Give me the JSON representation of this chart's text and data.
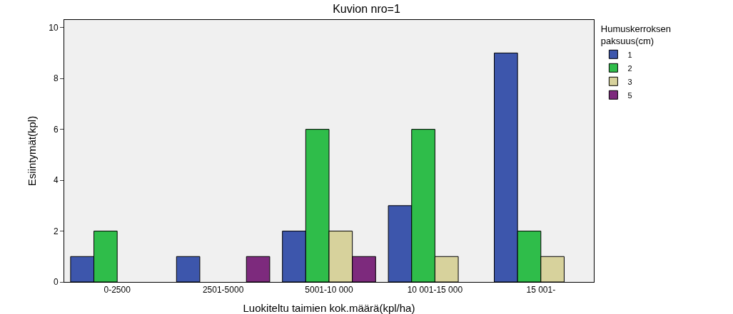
{
  "chart_data": {
    "type": "bar",
    "title": "Kuvion nro=1",
    "xlabel": "Luokiteltu taimien kok.määrä(kpl/ha)",
    "ylabel": "Esiintymät(kpl)",
    "legend_title": "Humuskerroksen paksuus(cm)",
    "categories": [
      "0-2500",
      "2501-5000",
      "5001-10 000",
      "10 001-15 000",
      "15 001-"
    ],
    "series": [
      {
        "name": "1",
        "color": "#3d56ac",
        "values": [
          1,
          1,
          2,
          3,
          9
        ]
      },
      {
        "name": "2",
        "color": "#2fbd4a",
        "values": [
          2,
          null,
          6,
          6,
          2
        ]
      },
      {
        "name": "3",
        "color": "#d7d29c",
        "values": [
          null,
          null,
          2,
          1,
          1
        ]
      },
      {
        "name": "5",
        "color": "#7d2a7d",
        "values": [
          null,
          1,
          1,
          null,
          null
        ]
      }
    ],
    "ylim": [
      0,
      10.3
    ],
    "yticks": [
      0,
      2,
      4,
      6,
      8,
      10
    ],
    "grid": false,
    "legend": "top right"
  }
}
